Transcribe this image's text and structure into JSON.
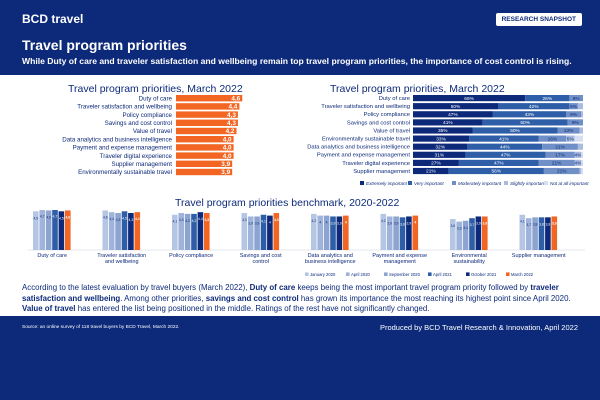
{
  "header": {
    "logo": "BCD travel",
    "badge": "RESEARCH SNAPSHOT",
    "title": "Travel program priorities",
    "subtitle": "While Duty of care and traveler satisfaction and wellbeing remain top travel program priorities, the importance of cost control is rising."
  },
  "colors": {
    "header_bg": "#0d2a7a",
    "accent_orange": "#f26522",
    "extremely": "#0d2a7a",
    "very": "#2f5ea8",
    "moderately": "#6f8fc6",
    "slightly": "#a9bce0",
    "not_at_all": "#d6dff0"
  },
  "chart_data": [
    {
      "type": "bar",
      "orientation": "horizontal",
      "title": "Travel program priorities, March 2022",
      "categories": [
        "Duty of care",
        "Traveler satisfaction and wellbeing",
        "Policy compliance",
        "Savings and cost control",
        "Value of travel",
        "Data analytics and business intelligence",
        "Payment and expense management",
        "Traveler digital experience",
        "Supplier management",
        "Environmentally sustainable travel"
      ],
      "values": [
        4.6,
        4.4,
        4.3,
        4.3,
        4.2,
        4.0,
        4.0,
        4.0,
        3.9,
        3.9
      ],
      "value_labels": [
        "4,6",
        "4,4",
        "4,3",
        "4,3",
        "4,2",
        "4,0",
        "4,0",
        "4,0",
        "3,9",
        "3,9"
      ],
      "xlim": [
        0,
        5
      ]
    },
    {
      "type": "bar",
      "orientation": "horizontal",
      "stacked": true,
      "title": "Travel program priorities, March 2022",
      "categories": [
        "Duty of care",
        "Traveler satisfaction and wellbeing",
        "Policy compliance",
        "Savings and cost control",
        "Value of travel",
        "Environmentally sustainable travel",
        "Data analytics and business intelligence",
        "Payment and expense management",
        "Traveler digital experience",
        "Supplier management"
      ],
      "series": [
        {
          "name": "Extremely important",
          "values": [
            66,
            50,
            47,
            41,
            35,
            33,
            32,
            31,
            27,
            21
          ]
        },
        {
          "name": "Very important",
          "values": [
            26,
            42,
            43,
            50,
            50,
            41,
            44,
            47,
            47,
            56
          ]
        },
        {
          "name": "Moderately important",
          "values": [
            8,
            5,
            9,
            9,
            13,
            16,
            21,
            17,
            21,
            21
          ]
        },
        {
          "name": "Slightly important",
          "values": [
            0,
            3,
            1,
            0,
            2,
            5,
            3,
            4,
            4,
            1
          ]
        },
        {
          "name": "Not at all important",
          "values": [
            0,
            0,
            0,
            0,
            0,
            5,
            0,
            1,
            1,
            1
          ]
        }
      ],
      "value_labels": {
        "extremely": [
          "66%",
          "50%",
          "47%",
          "41%",
          "35%",
          "33%",
          "32%",
          "31%",
          "27%",
          "21%"
        ],
        "very": [
          "26%",
          "42%",
          "43%",
          "50%",
          "50%",
          "41%",
          "44%",
          "47%",
          "47%",
          "56%"
        ],
        "moderately": [
          "8%",
          "5%",
          "9%",
          "9%",
          "13%",
          "16%",
          "21%",
          "17%",
          "21%",
          "21%"
        ],
        "slightly": [
          "",
          "",
          "",
          "",
          "",
          "5%",
          "",
          "4%",
          "4%",
          ""
        ]
      },
      "legend_position": "bottom"
    },
    {
      "type": "bar",
      "title": "Travel program priorities benchmark, 2020-2022",
      "categories": [
        "Duty of care",
        "Traveler satisfaction and wellbeing",
        "Policy compliance",
        "Savings and cost control",
        "Data analytics and business intelligence",
        "Payment and expense management",
        "Environmental sustainability",
        "Supplier management"
      ],
      "series": [
        {
          "name": "January 2020",
          "values": [
            4.5,
            4.6,
            4.1,
            4.3,
            4.2,
            4.2,
            3.6,
            4.1
          ]
        },
        {
          "name": "April 2020",
          "values": [
            4.7,
            4.4,
            4.3,
            3.9,
            4.0,
            3.9,
            3.3,
            3.7
          ]
        },
        {
          "name": "September 2020",
          "values": [
            4.6,
            4.3,
            4.2,
            3.9,
            4.0,
            3.9,
            3.4,
            3.8
          ]
        },
        {
          "name": "April 2021",
          "values": [
            4.7,
            4.5,
            4.2,
            4.1,
            3.9,
            3.8,
            3.7,
            3.8
          ]
        },
        {
          "name": "October 2021",
          "values": [
            4.5,
            4.3,
            4.4,
            4.0,
            3.9,
            3.9,
            3.9,
            3.8
          ]
        },
        {
          "name": "March 2022",
          "values": [
            4.6,
            4.4,
            4.3,
            4.3,
            4.0,
            4.0,
            3.9,
            3.9
          ]
        }
      ],
      "value_labels": [
        [
          "4,5",
          "4,7",
          "4,6",
          "4,7",
          "4,5",
          "4,6"
        ],
        [
          "4,6",
          "4,4",
          "4,3",
          "4,5",
          "4,3",
          "4,4"
        ],
        [
          "4,1",
          "4,3",
          "4,2",
          "4,2",
          "4,4",
          "4,3"
        ],
        [
          "4,3",
          "3,9",
          "3,9",
          "4,1",
          "4",
          "4,3"
        ],
        [
          "4,2",
          "4",
          "4",
          "3,9",
          "3,9",
          "4"
        ],
        [
          "4,2",
          "3,9",
          "3,9",
          "3,8",
          "3,9",
          "4"
        ],
        [
          "3,6",
          "3,3",
          "3,4",
          "3,7",
          "3,9",
          "3,9"
        ],
        [
          "4,1",
          "3,7",
          "3,8",
          "3,8",
          "3,8",
          "3,9"
        ]
      ],
      "ylim": [
        0,
        5
      ],
      "legend_position": "bottom"
    }
  ],
  "paragraph": [
    {
      "t": "According to the latest evaluation by travel buyers (March 2022), ",
      "b": false
    },
    {
      "t": "Duty of care",
      "b": true
    },
    {
      "t": " keeps being the most important travel program priority followed by ",
      "b": false
    },
    {
      "t": "traveler satisfaction and wellbeing",
      "b": true
    },
    {
      "t": ". Among other priorities, ",
      "b": false
    },
    {
      "t": "savings and cost control",
      "b": true
    },
    {
      "t": " has grown its importance the most reaching its highest point since April 2020. ",
      "b": false
    },
    {
      "t": "Value of travel",
      "b": true
    },
    {
      "t": " has entered the list being positioned in the middle. Ratings of the rest have not significantly changed.",
      "b": false
    }
  ],
  "footer": {
    "source": "Source: an online survey of 118 travel buyers by BCD Travel, March 2022.",
    "produced": "Produced by BCD Travel Research & Innovation, April 2022"
  }
}
